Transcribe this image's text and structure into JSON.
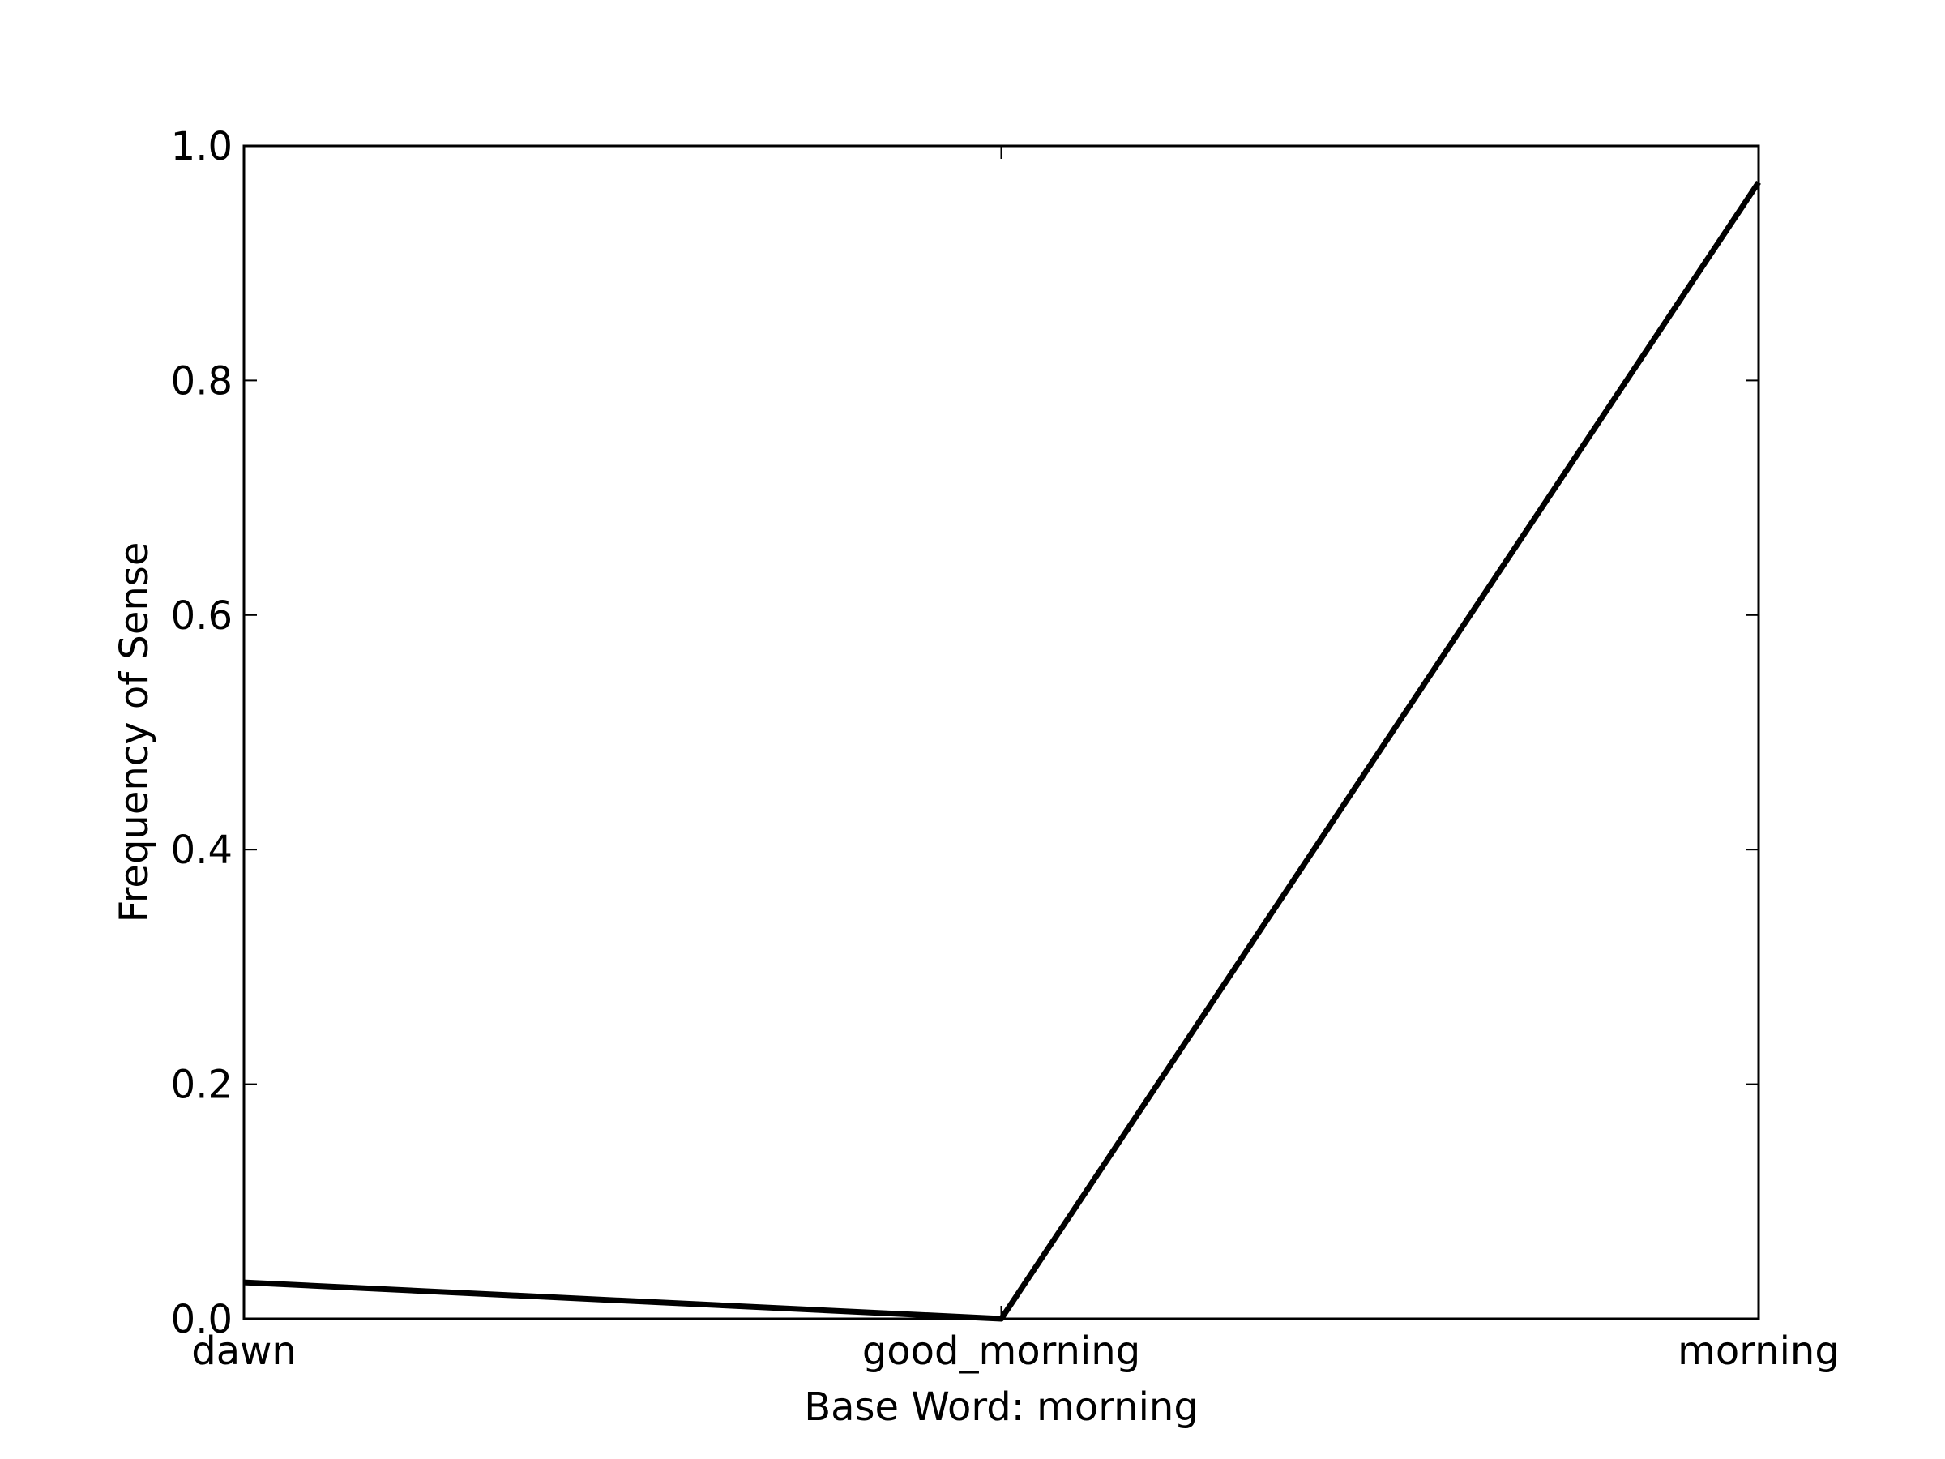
{
  "chart_data": {
    "type": "line",
    "xlabel": "Base Word: morning",
    "ylabel": "Frequency of Sense",
    "categories": [
      "dawn",
      "good_morning",
      "morning"
    ],
    "series": [
      {
        "values": [
          0.031,
          0.0,
          0.969
        ],
        "color": "#000000"
      }
    ],
    "ylim": [
      0.0,
      1.0
    ],
    "yticks": [
      0.0,
      0.2,
      0.4,
      0.6,
      0.8,
      1.0
    ],
    "ytick_labels": [
      "0.0",
      "0.2",
      "0.4",
      "0.6",
      "0.8",
      "1.0"
    ],
    "grid": false,
    "legend": "none"
  }
}
